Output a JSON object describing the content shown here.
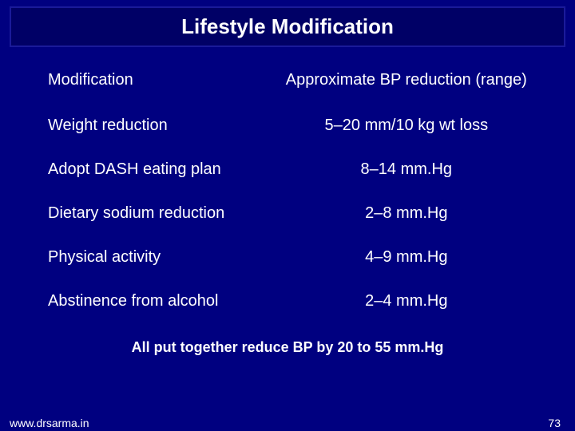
{
  "slide": {
    "title": "Lifestyle Modification",
    "background_color": "#000080",
    "title_bar_bg": "#000066",
    "title_bar_border": "#1a1a99",
    "text_color": "#ffffff",
    "title_fontsize": 26,
    "body_fontsize": 20,
    "summary_fontsize": 18
  },
  "table": {
    "headers": {
      "col1": "Modification",
      "col2": "Approximate BP reduction (range)"
    },
    "rows": [
      {
        "mod": "Weight reduction",
        "bp": "5–20 mm/10 kg wt loss"
      },
      {
        "mod": "Adopt DASH eating plan",
        "bp": "8–14 mm.Hg"
      },
      {
        "mod": "Dietary sodium reduction",
        "bp": "2–8 mm.Hg"
      },
      {
        "mod": "Physical activity",
        "bp": "4–9 mm.Hg"
      },
      {
        "mod": "Abstinence from alcohol",
        "bp": "2–4 mm.Hg"
      }
    ]
  },
  "summary": "All put together reduce BP by 20 to 55 mm.Hg",
  "footer": {
    "url": "www.drsarma.in",
    "page": "73"
  }
}
